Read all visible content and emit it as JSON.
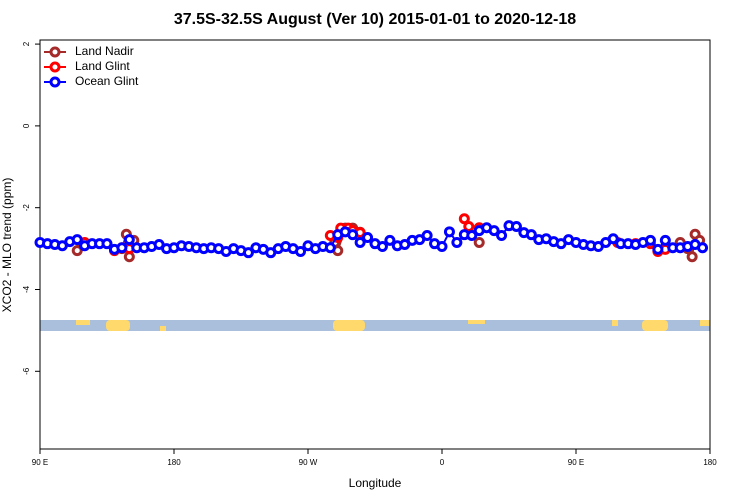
{
  "chart_data": {
    "type": "line",
    "title": "37.5S-32.5S August (Ver 10)   2015-01-01 to 2020-12-18",
    "x_label": "Longitude",
    "y_label": "XCO2 - MLO trend (ppm)",
    "xlim": [
      90,
      540
    ],
    "ylim": [
      -7.9,
      2.1
    ],
    "xticks": [
      {
        "value": 90,
        "label": "90 E"
      },
      {
        "value": 180,
        "label": "180"
      },
      {
        "value": 270,
        "label": "90 W"
      },
      {
        "value": 360,
        "label": "0"
      },
      {
        "value": 450,
        "label": "90 E"
      },
      {
        "value": 540,
        "label": "180"
      }
    ],
    "yticks": [
      2,
      0,
      -2,
      -4,
      -6
    ],
    "legend": "top-left",
    "series": [
      {
        "name": "Land Nadir",
        "color": "#a52a2a",
        "x": [
          115,
          118,
          145,
          148,
          150,
          153,
          288,
          290,
          295,
          300,
          305,
          378,
          385,
          505,
          520,
          525,
          528,
          530,
          533
        ],
        "values": [
          -3.05,
          -2.88,
          -3.0,
          -2.65,
          -3.2,
          -2.8,
          -2.85,
          -3.05,
          -2.5,
          -2.5,
          -2.6,
          -2.6,
          -2.85,
          -3.05,
          -2.85,
          -3.0,
          -3.2,
          -2.65,
          -2.8
        ]
      },
      {
        "name": "Land Glint",
        "color": "#ff0000",
        "x": [
          120,
          140,
          145,
          150,
          285,
          290,
          292,
          297,
          300,
          305,
          375,
          378,
          385,
          478,
          490,
          500,
          505,
          510
        ],
        "values": [
          -2.85,
          -3.05,
          -2.98,
          -3.0,
          -2.68,
          -2.73,
          -2.5,
          -2.5,
          -2.56,
          -2.61,
          -2.27,
          -2.46,
          -2.49,
          -2.85,
          -2.88,
          -2.88,
          -3.07,
          -3.02
        ]
      },
      {
        "name": "Ocean Glint",
        "color": "#0000ff",
        "x": [
          90,
          95,
          100,
          105,
          110,
          115,
          120,
          125,
          130,
          135,
          140,
          145,
          150,
          155,
          160,
          165,
          170,
          175,
          180,
          185,
          190,
          195,
          200,
          205,
          210,
          215,
          220,
          225,
          230,
          235,
          240,
          245,
          250,
          255,
          260,
          265,
          270,
          275,
          280,
          285,
          290,
          295,
          300,
          305,
          310,
          315,
          320,
          325,
          330,
          335,
          340,
          345,
          350,
          355,
          360,
          365,
          370,
          375,
          380,
          385,
          390,
          395,
          400,
          405,
          410,
          415,
          420,
          425,
          430,
          435,
          440,
          445,
          450,
          455,
          460,
          465,
          470,
          475,
          480,
          485,
          490,
          495,
          500,
          505,
          510,
          515,
          520,
          525,
          530,
          535
        ],
        "values": [
          -2.85,
          -2.88,
          -2.9,
          -2.93,
          -2.83,
          -2.78,
          -2.93,
          -2.88,
          -2.88,
          -2.88,
          -3.02,
          -2.98,
          -2.78,
          -2.98,
          -2.98,
          -2.95,
          -2.9,
          -3.0,
          -2.98,
          -2.93,
          -2.95,
          -2.98,
          -3.0,
          -2.98,
          -3.0,
          -3.07,
          -3.0,
          -3.05,
          -3.1,
          -2.98,
          -3.02,
          -3.1,
          -3.0,
          -2.95,
          -3.0,
          -3.07,
          -2.93,
          -3.0,
          -2.95,
          -2.98,
          -2.66,
          -2.59,
          -2.66,
          -2.85,
          -2.73,
          -2.88,
          -2.95,
          -2.8,
          -2.93,
          -2.9,
          -2.8,
          -2.78,
          -2.68,
          -2.88,
          -2.95,
          -2.59,
          -2.85,
          -2.66,
          -2.68,
          -2.56,
          -2.49,
          -2.56,
          -2.68,
          -2.44,
          -2.46,
          -2.61,
          -2.66,
          -2.78,
          -2.76,
          -2.83,
          -2.88,
          -2.78,
          -2.85,
          -2.9,
          -2.93,
          -2.95,
          -2.85,
          -2.76,
          -2.88,
          -2.88,
          -2.9,
          -2.85,
          -2.8,
          -3.02,
          -2.8,
          -2.98,
          -2.98,
          -2.95,
          -2.9,
          -2.98
        ]
      }
    ]
  }
}
